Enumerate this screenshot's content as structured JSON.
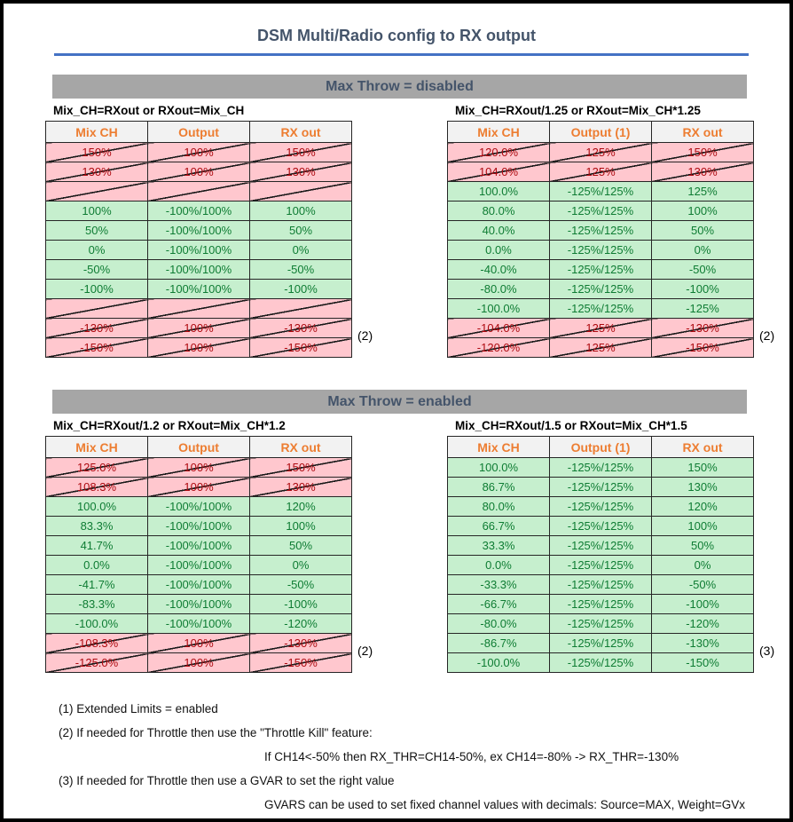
{
  "title": "DSM Multi/Radio config to RX output",
  "colors": {
    "accent_blue": "#4472C4",
    "title_text": "#44546A",
    "banner_bg": "#A6A6A6",
    "good_bg": "#C6EFCE",
    "good_text": "#0E7C33",
    "bad_bg": "#FFC7CE",
    "bad_text": "#AE0A10",
    "header_bg": "#F2F2F2",
    "header_text": "#ED7D31"
  },
  "sections": [
    {
      "banner": "Max Throw = disabled",
      "tables": [
        {
          "caption": "Mix_CH=RXout or RXout=Mix_CH",
          "headers": [
            "Mix CH",
            "Output",
            "RX out"
          ],
          "rows": [
            {
              "cells": [
                "150%",
                "100%",
                "150%"
              ],
              "status": "bad"
            },
            {
              "cells": [
                "130%",
                "100%",
                "130%"
              ],
              "status": "bad"
            },
            {
              "cells": [
                "",
                "",
                ""
              ],
              "status": "bad"
            },
            {
              "cells": [
                "100%",
                "-100%/100%",
                "100%"
              ],
              "status": "good"
            },
            {
              "cells": [
                "50%",
                "-100%/100%",
                "50%"
              ],
              "status": "good"
            },
            {
              "cells": [
                "0%",
                "-100%/100%",
                "0%"
              ],
              "status": "good"
            },
            {
              "cells": [
                "-50%",
                "-100%/100%",
                "-50%"
              ],
              "status": "good"
            },
            {
              "cells": [
                "-100%",
                "-100%/100%",
                "-100%"
              ],
              "status": "good"
            },
            {
              "cells": [
                "",
                "",
                ""
              ],
              "status": "bad"
            },
            {
              "cells": [
                "-130%",
                "100%",
                "-130%"
              ],
              "status": "bad",
              "note": "(2)"
            },
            {
              "cells": [
                "-150%",
                "100%",
                "-150%"
              ],
              "status": "bad"
            }
          ]
        },
        {
          "caption": "Mix_CH=RXout/1.25 or RXout=Mix_CH*1.25",
          "headers": [
            "Mix CH",
            "Output (1)",
            "RX out"
          ],
          "rows": [
            {
              "cells": [
                "120.0%",
                "125%",
                "150%"
              ],
              "status": "bad"
            },
            {
              "cells": [
                "104.0%",
                "125%",
                "130%"
              ],
              "status": "bad"
            },
            {
              "cells": [
                "100.0%",
                "-125%/125%",
                "125%"
              ],
              "status": "good"
            },
            {
              "cells": [
                "80.0%",
                "-125%/125%",
                "100%"
              ],
              "status": "good"
            },
            {
              "cells": [
                "40.0%",
                "-125%/125%",
                "50%"
              ],
              "status": "good"
            },
            {
              "cells": [
                "0.0%",
                "-125%/125%",
                "0%"
              ],
              "status": "good"
            },
            {
              "cells": [
                "-40.0%",
                "-125%/125%",
                "-50%"
              ],
              "status": "good"
            },
            {
              "cells": [
                "-80.0%",
                "-125%/125%",
                "-100%"
              ],
              "status": "good"
            },
            {
              "cells": [
                "-100.0%",
                "-125%/125%",
                "-125%"
              ],
              "status": "good"
            },
            {
              "cells": [
                "-104.0%",
                "125%",
                "-130%"
              ],
              "status": "bad",
              "note": "(2)"
            },
            {
              "cells": [
                "-120.0%",
                "125%",
                "-150%"
              ],
              "status": "bad"
            }
          ]
        }
      ]
    },
    {
      "banner": "Max Throw = enabled",
      "tables": [
        {
          "caption": "Mix_CH=RXout/1.2 or RXout=Mix_CH*1.2",
          "headers": [
            "Mix CH",
            "Output",
            "RX out"
          ],
          "rows": [
            {
              "cells": [
                "125.0%",
                "100%",
                "150%"
              ],
              "status": "bad"
            },
            {
              "cells": [
                "108.3%",
                "100%",
                "130%"
              ],
              "status": "bad"
            },
            {
              "cells": [
                "100.0%",
                "-100%/100%",
                "120%"
              ],
              "status": "good"
            },
            {
              "cells": [
                "83.3%",
                "-100%/100%",
                "100%"
              ],
              "status": "good"
            },
            {
              "cells": [
                "41.7%",
                "-100%/100%",
                "50%"
              ],
              "status": "good"
            },
            {
              "cells": [
                "0.0%",
                "-100%/100%",
                "0%"
              ],
              "status": "good"
            },
            {
              "cells": [
                "-41.7%",
                "-100%/100%",
                "-50%"
              ],
              "status": "good"
            },
            {
              "cells": [
                "-83.3%",
                "-100%/100%",
                "-100%"
              ],
              "status": "good"
            },
            {
              "cells": [
                "-100.0%",
                "-100%/100%",
                "-120%"
              ],
              "status": "good"
            },
            {
              "cells": [
                "-108.3%",
                "100%",
                "-130%"
              ],
              "status": "bad",
              "note": "(2)"
            },
            {
              "cells": [
                "-125.0%",
                "100%",
                "-150%"
              ],
              "status": "bad"
            }
          ]
        },
        {
          "caption": "Mix_CH=RXout/1.5 or RXout=Mix_CH*1.5",
          "headers": [
            "Mix CH",
            "Output (1)",
            "RX out"
          ],
          "rows": [
            {
              "cells": [
                "100.0%",
                "-125%/125%",
                "150%"
              ],
              "status": "good"
            },
            {
              "cells": [
                "86.7%",
                "-125%/125%",
                "130%"
              ],
              "status": "good"
            },
            {
              "cells": [
                "80.0%",
                "-125%/125%",
                "120%"
              ],
              "status": "good"
            },
            {
              "cells": [
                "66.7%",
                "-125%/125%",
                "100%"
              ],
              "status": "good"
            },
            {
              "cells": [
                "33.3%",
                "-125%/125%",
                "50%"
              ],
              "status": "good"
            },
            {
              "cells": [
                "0.0%",
                "-125%/125%",
                "0%"
              ],
              "status": "good"
            },
            {
              "cells": [
                "-33.3%",
                "-125%/125%",
                "-50%"
              ],
              "status": "good"
            },
            {
              "cells": [
                "-66.7%",
                "-125%/125%",
                "-100%"
              ],
              "status": "good"
            },
            {
              "cells": [
                "-80.0%",
                "-125%/125%",
                "-120%"
              ],
              "status": "good"
            },
            {
              "cells": [
                "-86.7%",
                "-125%/125%",
                "-130%"
              ],
              "status": "good",
              "note": "(3)"
            },
            {
              "cells": [
                "-100.0%",
                "-125%/125%",
                "-150%"
              ],
              "status": "good"
            }
          ]
        }
      ]
    }
  ],
  "footnotes": [
    {
      "text": "(1) Extended Limits = enabled",
      "indent": false
    },
    {
      "text": "(2) If needed for Throttle then use the \"Throttle Kill\" feature:",
      "indent": false
    },
    {
      "text": "If CH14<-50% then RX_THR=CH14-50%, ex CH14=-80% -> RX_THR=-130%",
      "indent": true
    },
    {
      "text": "(3) If needed for Throttle then use a GVAR to set the right value",
      "indent": false
    },
    {
      "text": "GVARS can be used to set fixed channel values with decimals: Source=MAX, Weight=GVx",
      "indent": true
    }
  ]
}
